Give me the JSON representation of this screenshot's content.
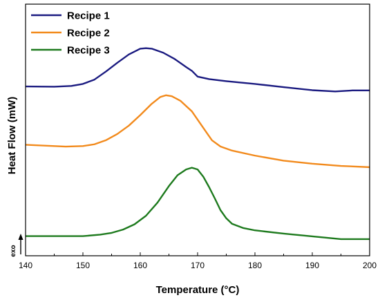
{
  "chart_data": {
    "type": "line",
    "title": "",
    "xlabel": "Temperature (°C)",
    "ylabel": "Heat Flow (mW)",
    "exo_label": "exo",
    "xlim": [
      140,
      200
    ],
    "ylim": [
      0,
      100
    ],
    "y_ticks_shown": false,
    "x_ticks": [
      140,
      150,
      160,
      170,
      180,
      190,
      200
    ],
    "x_tick_labels": [
      "140",
      "150",
      "160",
      "170",
      "180",
      "190",
      "200"
    ],
    "grid": false,
    "legend_position": "top-left",
    "series": [
      {
        "name": "Recipe 1",
        "color": "#1a1a80",
        "points": [
          [
            140,
            67.3
          ],
          [
            145,
            67.2
          ],
          [
            148,
            67.5
          ],
          [
            150,
            68.3
          ],
          [
            152,
            70.0
          ],
          [
            154,
            73.2
          ],
          [
            156,
            76.7
          ],
          [
            158,
            80.0
          ],
          [
            160,
            82.3
          ],
          [
            161,
            82.5
          ],
          [
            162,
            82.3
          ],
          [
            164,
            80.7
          ],
          [
            166,
            78.2
          ],
          [
            168,
            75.0
          ],
          [
            169,
            73.5
          ],
          [
            170,
            71.2
          ],
          [
            172,
            70.2
          ],
          [
            175,
            69.4
          ],
          [
            180,
            68.3
          ],
          [
            185,
            67.0
          ],
          [
            190,
            65.8
          ],
          [
            194,
            65.3
          ],
          [
            197,
            65.7
          ],
          [
            200,
            65.7
          ]
        ]
      },
      {
        "name": "Recipe 2",
        "color": "#f28a1c",
        "points": [
          [
            140,
            44.1
          ],
          [
            143,
            43.8
          ],
          [
            147,
            43.4
          ],
          [
            150,
            43.6
          ],
          [
            152,
            44.3
          ],
          [
            154,
            45.9
          ],
          [
            156,
            48.4
          ],
          [
            158,
            51.7
          ],
          [
            160,
            55.9
          ],
          [
            162,
            60.4
          ],
          [
            163.5,
            63.1
          ],
          [
            164.5,
            63.8
          ],
          [
            165.5,
            63.4
          ],
          [
            167,
            61.6
          ],
          [
            169,
            57.4
          ],
          [
            171,
            50.8
          ],
          [
            172.5,
            45.9
          ],
          [
            174,
            43.4
          ],
          [
            176,
            41.8
          ],
          [
            180,
            39.8
          ],
          [
            185,
            37.8
          ],
          [
            190,
            36.6
          ],
          [
            195,
            35.7
          ],
          [
            200,
            35.2
          ]
        ]
      },
      {
        "name": "Recipe 3",
        "color": "#1d7a1d",
        "points": [
          [
            140,
            7.8
          ],
          [
            145,
            7.8
          ],
          [
            150,
            7.8
          ],
          [
            153,
            8.4
          ],
          [
            155,
            9.1
          ],
          [
            157,
            10.4
          ],
          [
            159,
            12.5
          ],
          [
            161,
            15.9
          ],
          [
            163,
            21.1
          ],
          [
            165,
            27.7
          ],
          [
            166.5,
            32.0
          ],
          [
            168,
            34.3
          ],
          [
            169,
            35.0
          ],
          [
            170,
            34.3
          ],
          [
            171,
            31.4
          ],
          [
            172,
            27.3
          ],
          [
            173,
            22.8
          ],
          [
            174,
            18.1
          ],
          [
            175,
            14.9
          ],
          [
            176,
            12.7
          ],
          [
            178,
            11.0
          ],
          [
            180,
            10.1
          ],
          [
            185,
            8.8
          ],
          [
            190,
            7.7
          ],
          [
            195,
            6.6
          ],
          [
            200,
            6.6
          ]
        ]
      }
    ]
  }
}
